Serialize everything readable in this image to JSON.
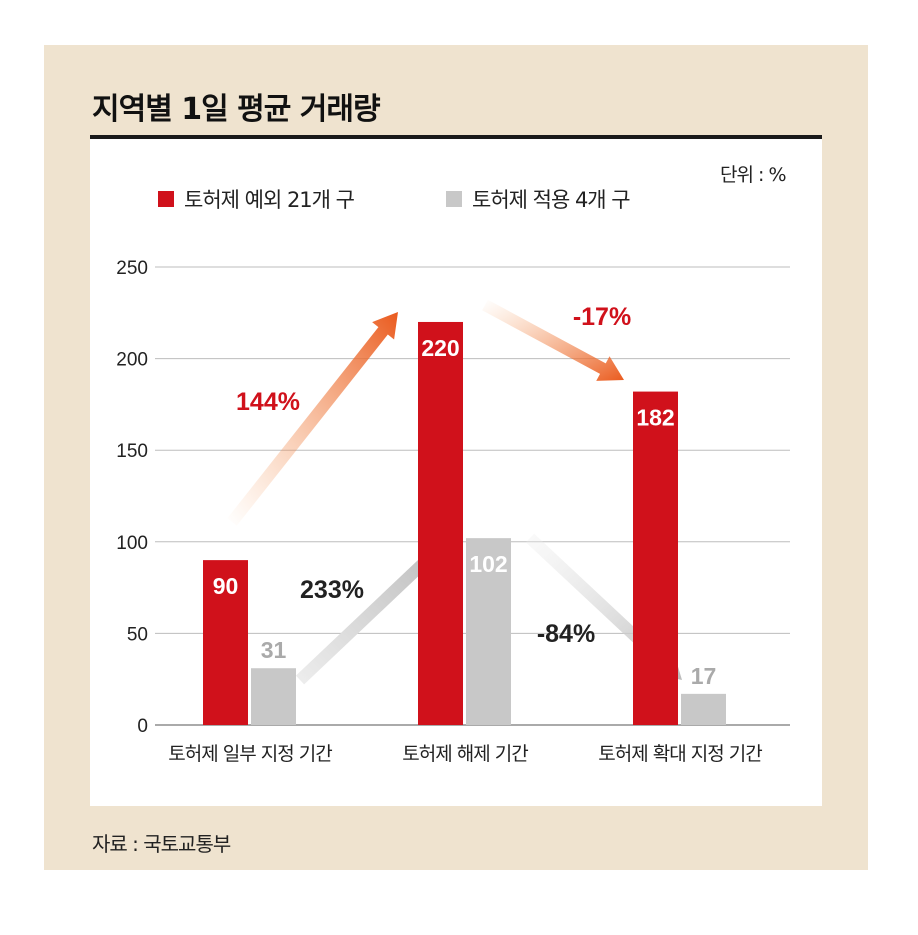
{
  "chart_data": {
    "type": "bar",
    "title": "지역별 1일 평균 거래량",
    "unit_label": "단위 : %",
    "source": "자료 : 국토교통부",
    "categories": [
      "토허제 일부 지정 기간",
      "토허제 해제 기간",
      "토허제 확대 지정 기간"
    ],
    "series": [
      {
        "name": "토허제 예외 21개 구",
        "color": "#d0111b",
        "values": [
          90,
          220,
          182
        ]
      },
      {
        "name": "토허제 적용 4개 구",
        "color": "#c8c8c8",
        "values": [
          31,
          102,
          17
        ]
      }
    ],
    "ylim": [
      0,
      250
    ],
    "yticks": [
      0,
      50,
      100,
      150,
      200,
      250
    ],
    "grid": true,
    "legend": "top-left",
    "annotations": [
      {
        "text": "144%",
        "series": 0,
        "from": 0,
        "to": 1,
        "color": "#d0111b"
      },
      {
        "text": "-17%",
        "series": 0,
        "from": 1,
        "to": 2,
        "color": "#d0111b"
      },
      {
        "text": "233%",
        "series": 1,
        "from": 0,
        "to": 1,
        "color": "#222222"
      },
      {
        "text": "-84%",
        "series": 1,
        "from": 1,
        "to": 2,
        "color": "#222222"
      }
    ]
  }
}
